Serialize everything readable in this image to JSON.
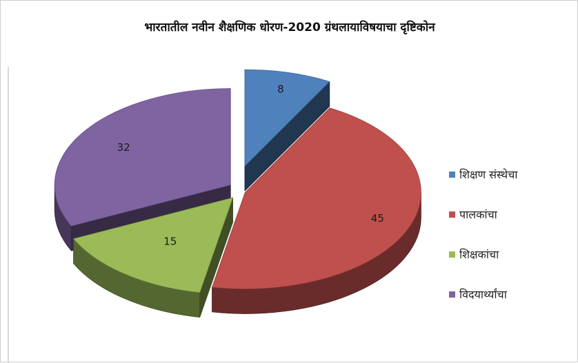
{
  "chart_data": {
    "type": "pie",
    "title": "भारतातील नवीन शैक्षणिक धोरण-2020 ग्रंथलायाविषयाचा दृष्टिकोन",
    "categories": [
      "शिक्षण संस्थेचा",
      "पालकांचा",
      "शिक्षकांचा",
      "विदयार्थ्यांचा"
    ],
    "values": [
      8,
      45,
      15,
      32
    ],
    "colors": [
      "#4f81bd",
      "#c0504d",
      "#9bbb59",
      "#8064a2"
    ],
    "legend_position": "right",
    "exploded": true,
    "three_d": true,
    "data_labels": true
  }
}
